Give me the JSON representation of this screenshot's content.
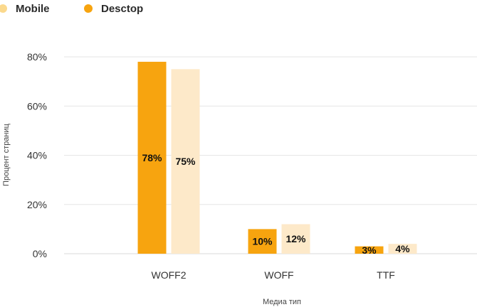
{
  "chart_data": {
    "type": "bar",
    "categories": [
      "WOFF2",
      "WOFF",
      "TTF"
    ],
    "series": [
      {
        "name": "Desctop",
        "values": [
          78,
          10,
          3
        ],
        "color": "#F7A40F"
      },
      {
        "name": "Mobile",
        "values": [
          75,
          12,
          4
        ],
        "color": "#FDE9C9"
      }
    ],
    "legend_order": [
      1,
      0
    ],
    "legend_colors": [
      "#FBD98D",
      "#F7A40F"
    ],
    "data_labels": [
      [
        "78%",
        "10%",
        "3%"
      ],
      [
        "75%",
        "12%",
        "4%"
      ]
    ],
    "y_ticks": [
      "0%",
      "20%",
      "40%",
      "60%",
      "80%"
    ],
    "y_tick_values": [
      0,
      20,
      40,
      60,
      80
    ],
    "ylim": [
      0,
      80
    ],
    "xlabel": "Медиа тип",
    "ylabel": "Процент страниц",
    "grid": true,
    "legend_position": "top-left"
  }
}
